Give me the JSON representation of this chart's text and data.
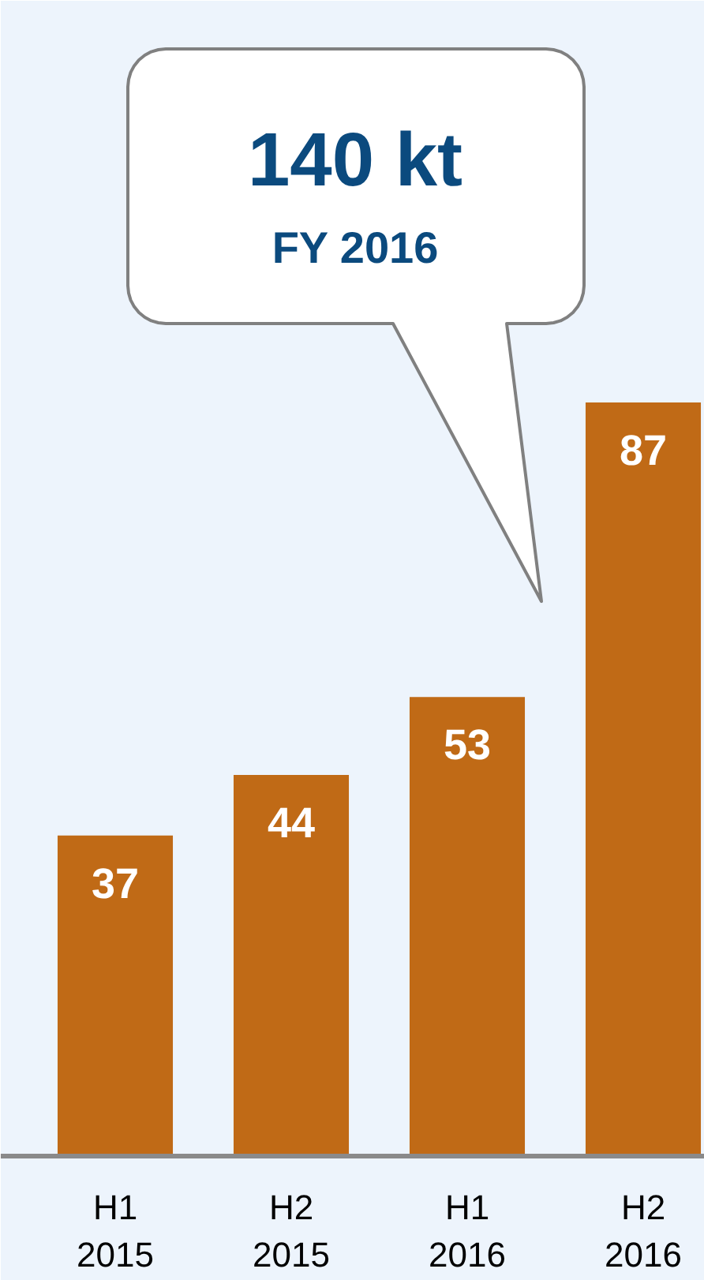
{
  "chart_data": {
    "type": "bar",
    "categories": [
      "H1 2015",
      "H2 2015",
      "H1 2016",
      "H2 2016"
    ],
    "values": [
      37,
      44,
      53,
      87
    ],
    "color": "#c06a16",
    "data_labels": true,
    "annotations": [
      "140 kt",
      "FY 2016"
    ]
  }
}
